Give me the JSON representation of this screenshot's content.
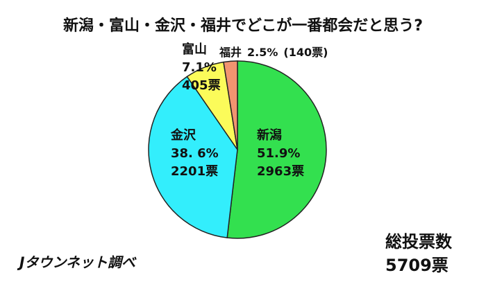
{
  "chart_data": {
    "type": "pie",
    "title": "新潟・富山・金沢・福井でどこが一番都会だと思う?",
    "categories": [
      "新潟",
      "金沢",
      "富山",
      "福井"
    ],
    "values": [
      51.9,
      38.6,
      7.1,
      2.5
    ],
    "value_labels": [
      "51.9%",
      "38. 6%",
      "7.1%",
      "2.5%"
    ],
    "counts": [
      2963,
      2201,
      405,
      140
    ],
    "count_labels": [
      "2963票",
      "2201票",
      "405票",
      "(140票)"
    ],
    "colors": [
      "#33e04f",
      "#33eefc",
      "#fbfb5a",
      "#f29470"
    ],
    "total_label": "総投票数",
    "total": 5709,
    "total_value_label": "5709票",
    "source": "Jタウンネット調べ"
  }
}
